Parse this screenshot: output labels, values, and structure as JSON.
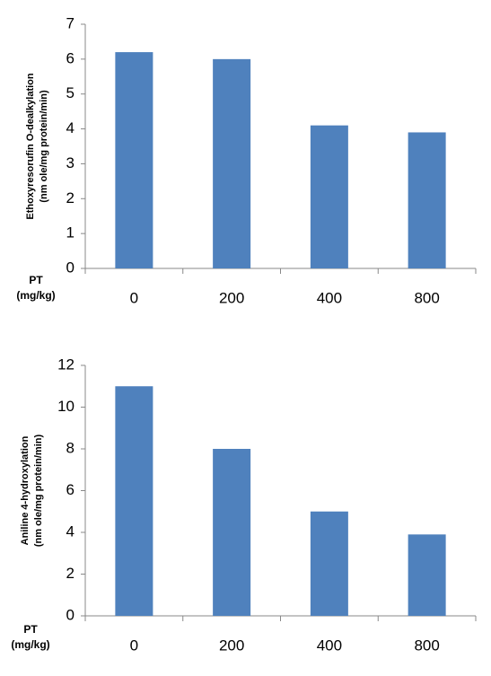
{
  "chart_data": [
    {
      "type": "bar",
      "ylabel": [
        "Ethoxyresorufin O-dealkylation",
        "(nm ole/mg protein/min)"
      ],
      "xlabel": [
        "PT",
        "(mg/kg)"
      ],
      "categories": [
        "0",
        "200",
        "400",
        "800"
      ],
      "values": [
        6.2,
        6.0,
        4.1,
        3.9
      ],
      "color": "#4f81bd",
      "ylim": [
        0,
        7
      ],
      "yticks": [
        0,
        1,
        2,
        3,
        4,
        5,
        6,
        7
      ],
      "grid": false
    },
    {
      "type": "bar",
      "ylabel": [
        "Aniline 4-hydroxylation",
        "(nm ole/mg protein/min)"
      ],
      "xlabel": [
        "PT",
        "(mg/kg)"
      ],
      "categories": [
        "0",
        "200",
        "400",
        "800"
      ],
      "values": [
        11,
        8,
        5,
        3.9
      ],
      "color": "#4f81bd",
      "ylim": [
        0,
        12
      ],
      "yticks": [
        0,
        2,
        4,
        6,
        8,
        10,
        12
      ],
      "grid": false
    }
  ]
}
